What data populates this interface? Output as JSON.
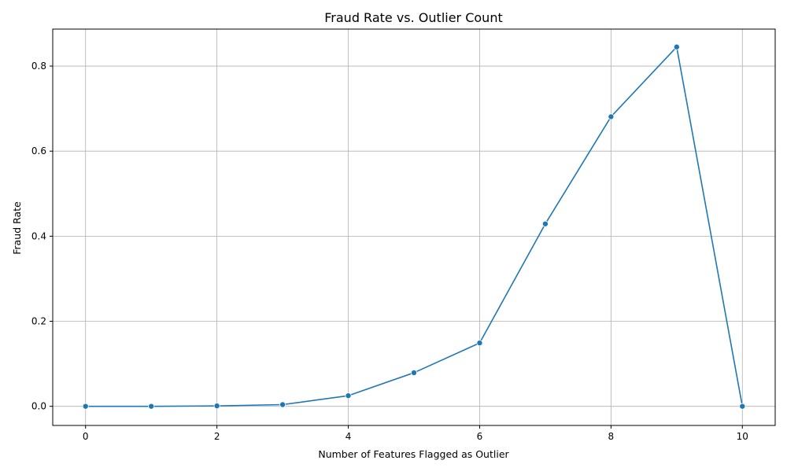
{
  "chart_data": {
    "type": "line",
    "title": "Fraud Rate vs. Outlier Count",
    "xlabel": "Number of Features Flagged as Outlier",
    "ylabel": "Fraud Rate",
    "xlim": [
      -0.5,
      10.5
    ],
    "ylim": [
      -0.045,
      0.887
    ],
    "x_ticks": [
      0,
      2,
      4,
      6,
      8,
      10
    ],
    "y_ticks": [
      0.0,
      0.2,
      0.4,
      0.6,
      0.8
    ],
    "x_tick_labels": [
      "0",
      "2",
      "4",
      "6",
      "8",
      "10"
    ],
    "y_tick_labels": [
      "0.0",
      "0.2",
      "0.4",
      "0.6",
      "0.8"
    ],
    "grid": true,
    "line_color": "#1f77b4",
    "marker": "circle",
    "series": [
      {
        "x": [
          0,
          1,
          2,
          3,
          4,
          5,
          6,
          7,
          8,
          9,
          10
        ],
        "values": [
          0.0,
          0.0,
          0.001,
          0.004,
          0.025,
          0.079,
          0.149,
          0.429,
          0.681,
          0.845,
          0.0
        ]
      }
    ]
  }
}
